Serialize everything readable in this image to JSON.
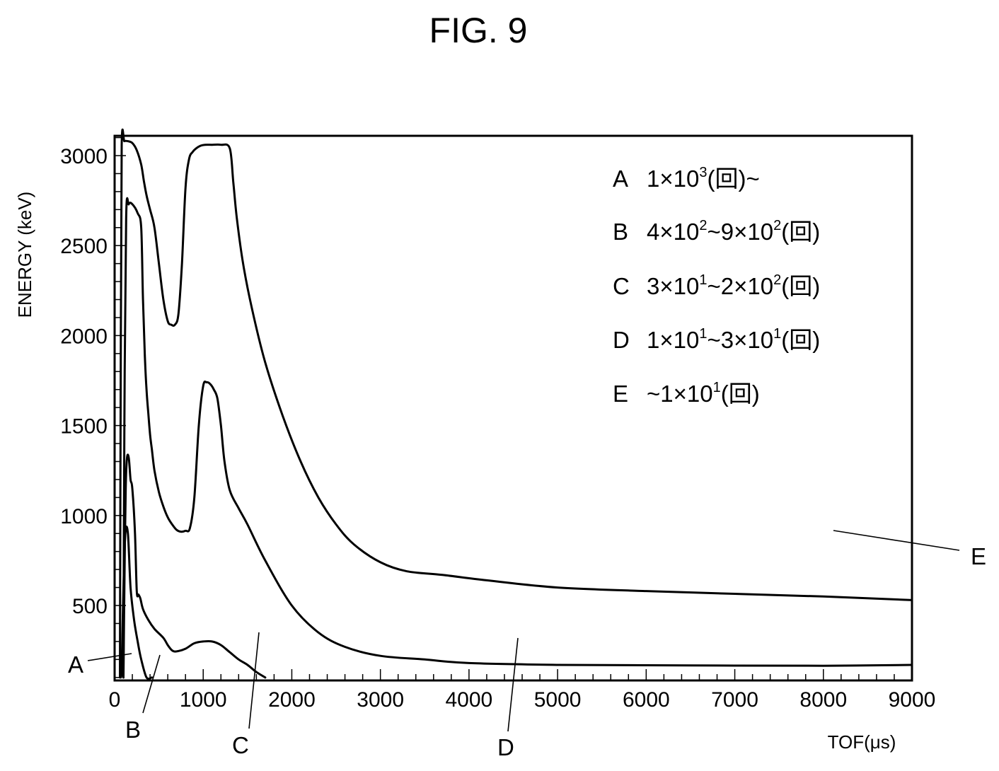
{
  "figure": {
    "title": "FIG. 9"
  },
  "chart_data": {
    "type": "line",
    "title": "",
    "xlabel": "TOF(μs)",
    "ylabel": "ENERGY (keV)",
    "xlim": [
      0,
      9000
    ],
    "ylim": [
      100,
      3100
    ],
    "x_ticks": [
      0,
      1000,
      2000,
      3000,
      4000,
      5000,
      6000,
      7000,
      8000,
      9000
    ],
    "y_ticks": [
      500,
      1000,
      1500,
      2000,
      2500,
      3000
    ],
    "grid": false,
    "legend_position": "top-right",
    "legend": [
      {
        "letter": "A",
        "text": "1×10",
        "sup": "3",
        "tail": "(回)~"
      },
      {
        "letter": "B",
        "text": "4×10",
        "sup": "2",
        "tail": "~9×10",
        "sup2": "2",
        "tail2": "(回)"
      },
      {
        "letter": "C",
        "text": "3×10",
        "sup": "1",
        "tail": "~2×10",
        "sup2": "2",
        "tail2": "(回)"
      },
      {
        "letter": "D",
        "text": "1×10",
        "sup": "1",
        "tail": "~3×10",
        "sup2": "1",
        "tail2": "(回)"
      },
      {
        "letter": "E",
        "text": "~1×10",
        "sup": "1",
        "tail": "(回)"
      }
    ],
    "region_labels": [
      "A",
      "B",
      "C",
      "D",
      "E"
    ],
    "series": [
      {
        "x": [
          70,
          80,
          95,
          120,
          150,
          180,
          220,
          260,
          300,
          360,
          420
        ],
        "y": [
          100,
          150,
          500,
          890,
          900,
          600,
          420,
          300,
          200,
          100,
          100
        ]
      },
      {
        "x": [
          100,
          110,
          125,
          140,
          160,
          180,
          200,
          230,
          250,
          270,
          290,
          320,
          380,
          450,
          550,
          600,
          650,
          700,
          800,
          900,
          1000,
          1100,
          1200,
          1300,
          1400,
          1500,
          1600,
          1700
        ],
        "y": [
          100,
          600,
          1150,
          1320,
          1320,
          1200,
          1150,
          900,
          580,
          560,
          540,
          480,
          420,
          370,
          320,
          280,
          250,
          245,
          260,
          290,
          300,
          300,
          280,
          240,
          200,
          170,
          130,
          100
        ]
      },
      {
        "x": [
          100,
          110,
          130,
          160,
          200,
          260,
          300,
          320,
          340,
          360,
          380,
          400,
          420,
          450,
          500,
          550,
          600,
          650,
          700,
          750,
          800,
          850,
          900,
          950,
          1000,
          1040,
          1080,
          1120,
          1160,
          1200,
          1240,
          1300,
          1400,
          1500,
          1700,
          2000,
          2300,
          2600,
          3000,
          3500,
          4000,
          5000,
          6000,
          7000,
          8000,
          9000
        ],
        "y": [
          100,
          1500,
          2650,
          2730,
          2730,
          2680,
          2600,
          2200,
          1900,
          1700,
          1570,
          1450,
          1370,
          1250,
          1130,
          1050,
          990,
          950,
          920,
          910,
          915,
          930,
          1100,
          1500,
          1720,
          1740,
          1730,
          1700,
          1650,
          1500,
          1300,
          1140,
          1040,
          950,
          750,
          500,
          350,
          270,
          220,
          200,
          180,
          170,
          168,
          166,
          165,
          170
        ]
      },
      {
        "x": [
          60,
          70,
          80,
          110,
          150,
          200,
          250,
          300,
          330,
          360,
          400,
          450,
          500,
          550,
          600,
          640,
          680,
          720,
          760,
          800,
          840,
          880,
          920,
          970,
          1020,
          1100,
          1200,
          1300,
          1340,
          1380,
          1450,
          1550,
          1700,
          1900,
          2100,
          2300,
          2500,
          2700,
          3000,
          3300,
          3700,
          4200,
          5000,
          6000,
          7000,
          8000,
          9000
        ],
        "y": [
          100,
          2000,
          3060,
          3080,
          3080,
          3070,
          3030,
          2950,
          2860,
          2780,
          2700,
          2600,
          2400,
          2200,
          2080,
          2060,
          2060,
          2120,
          2400,
          2820,
          2980,
          3020,
          3040,
          3055,
          3060,
          3060,
          3060,
          3040,
          2850,
          2650,
          2400,
          2150,
          1850,
          1550,
          1300,
          1100,
          950,
          840,
          740,
          690,
          670,
          640,
          600,
          580,
          565,
          550,
          530
        ]
      }
    ]
  }
}
